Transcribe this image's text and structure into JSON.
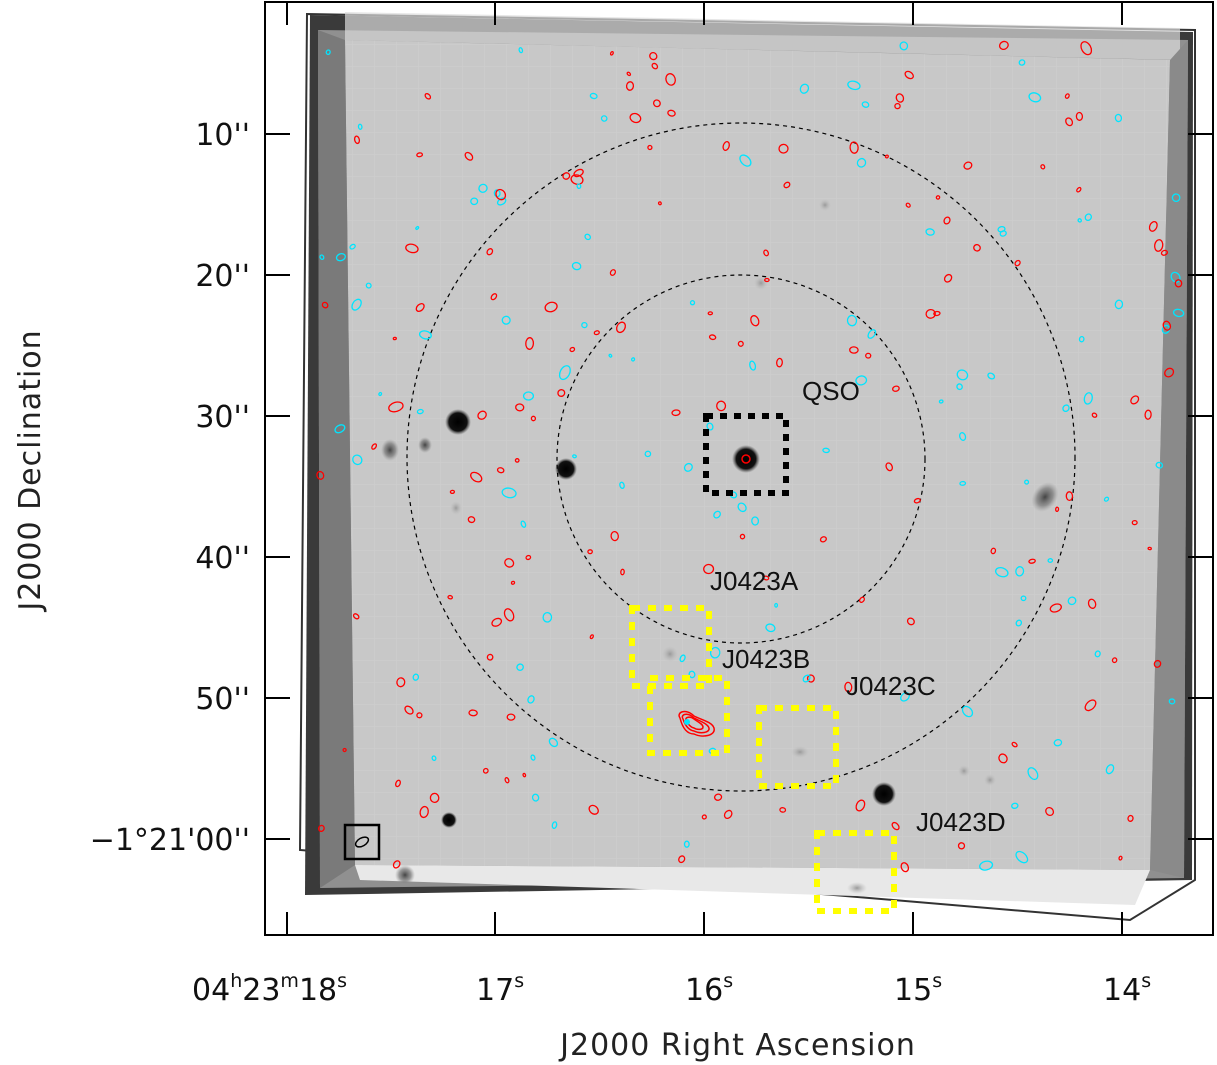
{
  "axes": {
    "xlabel": "J2000 Right Ascension",
    "ylabel": "J2000 Declination",
    "x_ticks": [
      {
        "base": "04",
        "sup1": "h",
        "mid": "23",
        "sup2": "m",
        "sec": "18",
        "sup3": "s"
      },
      {
        "sec": "17",
        "sup": "s"
      },
      {
        "sec": "16",
        "sup": "s"
      },
      {
        "sec": "15",
        "sup": "s"
      },
      {
        "sec": "14",
        "sup": "s"
      }
    ],
    "y_ticks": [
      "10''",
      "20''",
      "30''",
      "40''",
      "50''",
      "−1°21'00''"
    ]
  },
  "labels": {
    "qso": "QSO",
    "a": "J0423A",
    "b": "J0423B",
    "c": "J0423C",
    "d": "J0423D"
  },
  "colors": {
    "image_bg": "#c8c8c8",
    "contour_positive": "#ff0000",
    "contour_negative": "#00e5ff",
    "highlight_box": "#ffff00",
    "qso_box": "#000000"
  }
}
